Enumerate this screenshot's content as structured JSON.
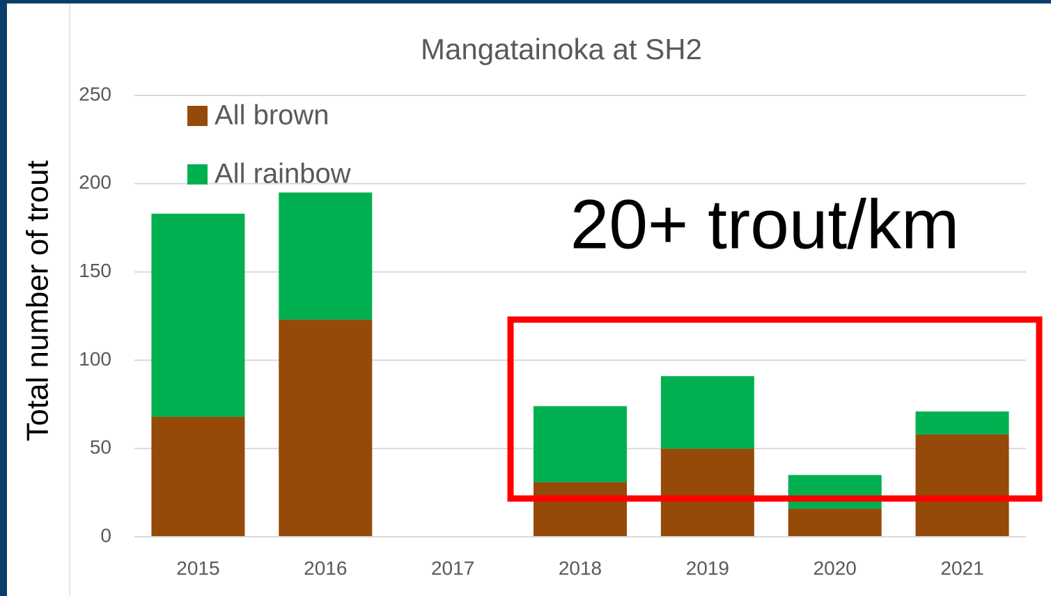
{
  "chart_data": {
    "type": "bar",
    "stacked": true,
    "title": "Mangatainoka at SH2",
    "y_label": "Total number of trout",
    "annotation": "20+ trout/km",
    "categories": [
      "2015",
      "2016",
      "2017",
      "2018",
      "2019",
      "2020",
      "2021"
    ],
    "series": [
      {
        "name": "All brown",
        "color": "#954a09",
        "values": [
          68,
          123,
          null,
          31,
          50,
          16,
          58
        ]
      },
      {
        "name": "All rainbow",
        "color": "#00b050",
        "values": [
          115,
          72,
          null,
          43,
          41,
          19,
          13
        ]
      }
    ],
    "ylim": [
      0,
      250
    ],
    "yticks": [
      0,
      50,
      100,
      150,
      200,
      250
    ],
    "grid": true,
    "highlight_color": "#ff0000"
  }
}
